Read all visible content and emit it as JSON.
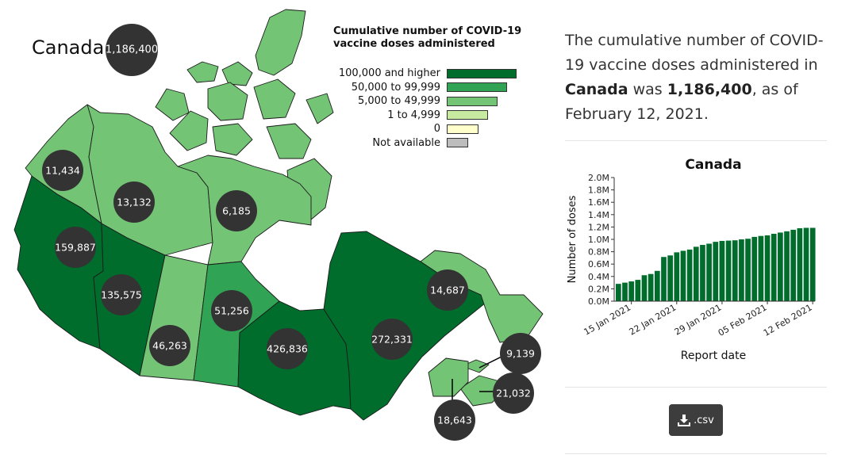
{
  "map": {
    "region_label": "Canada",
    "total_badge": "1,186,400",
    "legend": {
      "title_line1": "Cumulative number of COVID-19",
      "title_line2": "vaccine doses administered",
      "entries": [
        {
          "label": "100,000 and higher",
          "color": "#006d2c"
        },
        {
          "label": "50,000 to 99,999",
          "color": "#31a354"
        },
        {
          "label": "5,000 to 49,999",
          "color": "#74c476"
        },
        {
          "label": "1 to 4,999",
          "color": "#c7e9a0"
        },
        {
          "label": "0",
          "color": "#ffffcc"
        },
        {
          "label": "Not available",
          "color": "#bdbdbd"
        }
      ]
    },
    "provinces": [
      {
        "name": "YT",
        "value": "11,434",
        "color": "#74c476"
      },
      {
        "name": "NT",
        "value": "13,132",
        "color": "#74c476"
      },
      {
        "name": "NU",
        "value": "6,185",
        "color": "#74c476"
      },
      {
        "name": "BC",
        "value": "159,887",
        "color": "#006d2c"
      },
      {
        "name": "AB",
        "value": "135,575",
        "color": "#006d2c"
      },
      {
        "name": "SK",
        "value": "46,263",
        "color": "#74c476"
      },
      {
        "name": "MB",
        "value": "51,256",
        "color": "#31a354"
      },
      {
        "name": "ON",
        "value": "426,836",
        "color": "#006d2c"
      },
      {
        "name": "QC",
        "value": "272,331",
        "color": "#006d2c"
      },
      {
        "name": "NL",
        "value": "14,687",
        "color": "#74c476"
      },
      {
        "name": "PE",
        "value": "9,139",
        "color": "#74c476"
      },
      {
        "name": "NS",
        "value": "21,032",
        "color": "#74c476"
      },
      {
        "name": "NB",
        "value": "18,643",
        "color": "#74c476"
      }
    ]
  },
  "summary": {
    "part1": "The cumulative number of COVID-19 vaccine doses administered in ",
    "region": "Canada",
    "part2": " was ",
    "value": "1,186,400",
    "part3": ", as of February 12, 2021."
  },
  "chart_data": {
    "type": "bar",
    "title": "Canada",
    "xlabel": "Report date",
    "ylabel": "Number of doses",
    "ylim": [
      0,
      2000000
    ],
    "ytick_labels": [
      "0.0M",
      "0.2M",
      "0.4M",
      "0.6M",
      "0.8M",
      "1.0M",
      "1.2M",
      "1.4M",
      "1.6M",
      "1.8M",
      "2.0M"
    ],
    "x_tick_labels": [
      "15 Jan 2021",
      "22 Jan 2021",
      "29 Jan 2021",
      "05 Feb 2021",
      "12 Feb 2021"
    ],
    "categories": [
      "2021-01-13",
      "2021-01-14",
      "2021-01-15",
      "2021-01-16",
      "2021-01-17",
      "2021-01-18",
      "2021-01-19",
      "2021-01-20",
      "2021-01-21",
      "2021-01-22",
      "2021-01-23",
      "2021-01-24",
      "2021-01-25",
      "2021-01-26",
      "2021-01-27",
      "2021-01-28",
      "2021-01-29",
      "2021-01-30",
      "2021-01-31",
      "2021-02-01",
      "2021-02-02",
      "2021-02-03",
      "2021-02-04",
      "2021-02-05",
      "2021-02-06",
      "2021-02-07",
      "2021-02-08",
      "2021-02-09",
      "2021-02-10",
      "2021-02-11",
      "2021-02-12"
    ],
    "values": [
      280000,
      300000,
      320000,
      345000,
      420000,
      440000,
      490000,
      715000,
      740000,
      790000,
      815000,
      835000,
      880000,
      910000,
      930000,
      960000,
      975000,
      980000,
      985000,
      1000000,
      1010000,
      1040000,
      1055000,
      1065000,
      1090000,
      1110000,
      1130000,
      1155000,
      1180000,
      1186400,
      1186400
    ],
    "bar_color": "#006d2c",
    "grid": false
  },
  "download": {
    "label": ".csv"
  }
}
